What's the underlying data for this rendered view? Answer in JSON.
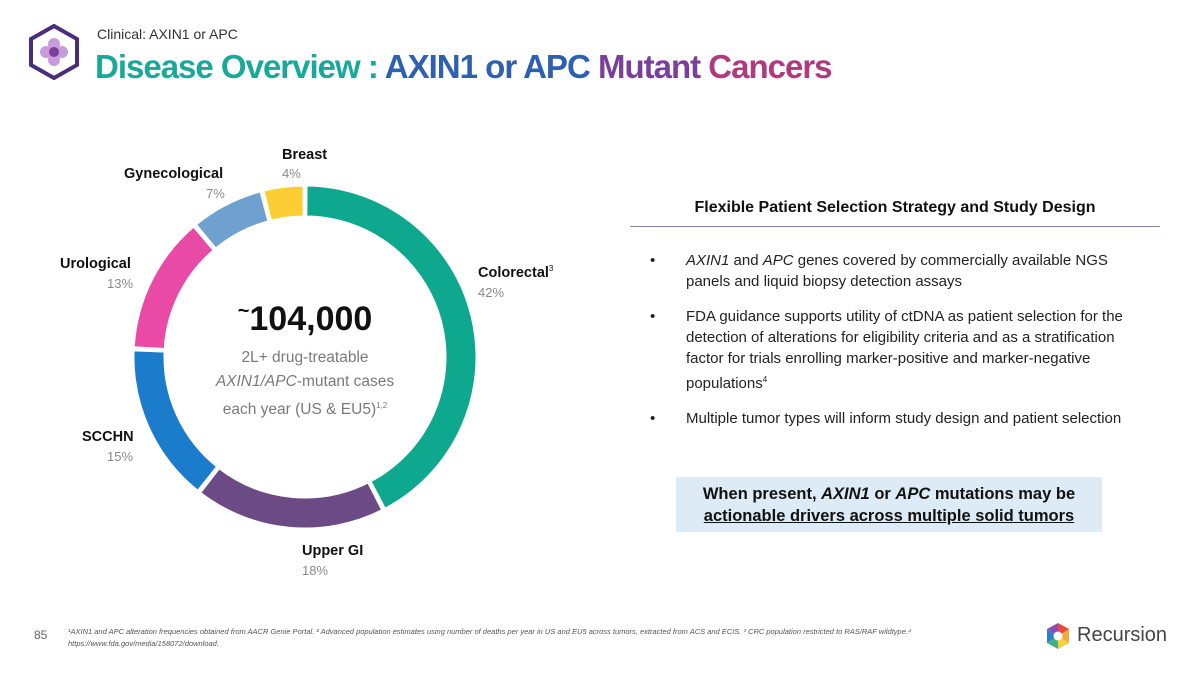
{
  "header": {
    "eyebrow": "Clinical: AXIN1 or APC",
    "title_part1": "Disease Overview : ",
    "title_part2": "AXIN1  or APC ",
    "title_part3": "Mutant ",
    "title_part4": "Cancers"
  },
  "chart_data": {
    "type": "pie",
    "title": "",
    "categories": [
      "Colorectal",
      "Upper GI",
      "SCCHN",
      "Urological",
      "Gynecological",
      "Breast"
    ],
    "values": [
      42,
      18,
      15,
      13,
      7,
      4
    ],
    "percent_labels": [
      "42%",
      "18%",
      "15%",
      "13%",
      "7%",
      "4%"
    ],
    "colors": [
      "#0ea88f",
      "#6b4a86",
      "#1c7ccc",
      "#e84aa6",
      "#6ea1cf",
      "#fdcd34"
    ],
    "colorectal_superscript": "3",
    "center": {
      "tilde": "~",
      "number": "104,000",
      "line1": "2L+ drug-treatable",
      "line2_italic": "AXIN1/APC",
      "line2_rest": "-mutant cases",
      "line3": "each year (US & EU5)",
      "line3_superscript": "1,2"
    }
  },
  "panel": {
    "title": "Flexible Patient Selection Strategy and Study Design",
    "bullet_symbol": "•",
    "bullet1_italic_a": "AXIN1",
    "bullet1_and": " and ",
    "bullet1_italic_b": "APC",
    "bullet1_rest": " genes covered by commercially available NGS panels and liquid biopsy detection assays",
    "bullet2": "FDA guidance supports utility of ctDNA as patient selection for the detection of alterations for eligibility criteria and as a stratification factor for trials enrolling marker-positive and marker-negative populations",
    "bullet2_superscript": "4",
    "bullet3": "Multiple tumor types will inform study design and patient selection"
  },
  "callout": {
    "prefix": "When present, ",
    "italic_a": "AXIN1",
    "or": " or ",
    "italic_b": "APC",
    "suffix": " mutations may be",
    "line2": "actionable drivers across multiple solid tumors"
  },
  "footer": {
    "page_number": "85",
    "footnote": "¹AXIN1 and APC alteration frequencies obtained from AACR Genie Portal. ² Advanced population estimates using number of deaths per year in US and EU5 across tumors, extracted from ACS and ECIS. ³ CRC population restricted to RAS/RAF wildtype.⁴ https://www.fda.gov/media/158072/download.",
    "brand": "Recursion"
  }
}
